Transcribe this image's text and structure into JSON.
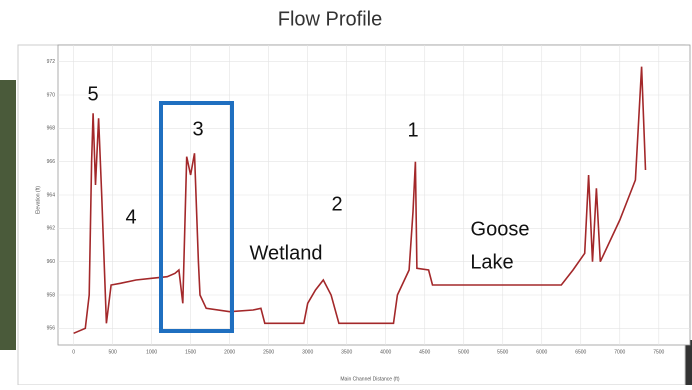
{
  "chart_data": {
    "type": "line",
    "title": "Flow Profile",
    "x_label": "Main Channel Distance (ft)",
    "y_label": "Elevation (ft)",
    "x": [
      0,
      150,
      200,
      230,
      250,
      280,
      320,
      360,
      420,
      480,
      600,
      800,
      1000,
      1200,
      1300,
      1350,
      1400,
      1450,
      1500,
      1550,
      1600,
      1620,
      1700,
      2000,
      2300,
      2400,
      2450,
      2500,
      2950,
      3000,
      3100,
      3200,
      3300,
      3400,
      4100,
      4150,
      4300,
      4350,
      4380,
      4400,
      4550,
      4600,
      6250,
      6400,
      6550,
      6600,
      6650,
      6700,
      6750,
      7000,
      7200,
      7280,
      7330
    ],
    "series": [
      {
        "name": "Profile",
        "color": "#a3282a",
        "values": [
          955.7,
          956.0,
          958,
          966,
          968.9,
          964.6,
          968.6,
          964,
          956.3,
          958.6,
          958.7,
          958.9,
          959.0,
          959.1,
          959.3,
          959.5,
          957.5,
          966.3,
          965.2,
          966.5,
          960,
          958.0,
          957.2,
          957,
          957.1,
          957.2,
          956.3,
          956.3,
          956.3,
          957.5,
          958.3,
          958.9,
          958,
          956.3,
          956.3,
          958,
          959.5,
          963,
          966.0,
          959.6,
          959.5,
          958.6,
          958.6,
          959.5,
          960.5,
          965.2,
          960,
          964.4,
          960,
          962.5,
          964.9,
          971.7,
          965.5
        ]
      }
    ],
    "xlim": [
      -200,
      7900
    ],
    "ylim": [
      955,
      973
    ],
    "xticks": [
      0,
      500,
      1000,
      1500,
      2000,
      2500,
      3000,
      3500,
      4000,
      4500,
      5000,
      5500,
      6000,
      6500,
      7000,
      7500
    ],
    "yticks": [
      956,
      958,
      960,
      962,
      964,
      966,
      968,
      970,
      972
    ],
    "annotations": [
      "5",
      "4",
      "3",
      "Wetland",
      "2",
      "1",
      "Goose",
      "Lake"
    ]
  }
}
